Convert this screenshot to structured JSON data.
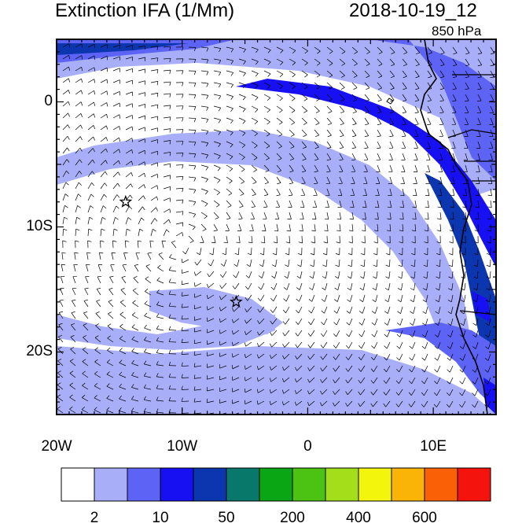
{
  "title": "Extinction IFA (1/Mm)",
  "timestamp": "2018-10-19_12",
  "level": "850 hPa",
  "map": {
    "lon_range": [
      -20,
      15
    ],
    "lat_range": [
      -25,
      5
    ],
    "lat_ticks": [
      {
        "value": 0,
        "label": "0"
      },
      {
        "value": -10,
        "label": "10S"
      },
      {
        "value": -20,
        "label": "20S"
      }
    ],
    "lon_ticks": [
      {
        "value": -20,
        "label": "20W"
      },
      {
        "value": -10,
        "label": "10W"
      },
      {
        "value": 0,
        "label": "0"
      },
      {
        "value": 10,
        "label": "10E"
      }
    ],
    "stars": [
      {
        "lon": -14.5,
        "lat": -8
      },
      {
        "lon": -5.7,
        "lat": -16
      }
    ]
  },
  "colorbar": {
    "colors": [
      "#ffffff",
      "#a8aff8",
      "#5d64f5",
      "#1610f2",
      "#0b36b0",
      "#07786a",
      "#0aa614",
      "#4cc213",
      "#a4dd1a",
      "#f4f50c",
      "#fab307",
      "#fa6005",
      "#f5130e"
    ],
    "labels": [
      {
        "after_box": 1,
        "text": "2"
      },
      {
        "after_box": 3,
        "text": "10"
      },
      {
        "after_box": 5,
        "text": "50"
      },
      {
        "after_box": 7,
        "text": "200"
      },
      {
        "after_box": 9,
        "text": "400"
      },
      {
        "after_box": 11,
        "text": "600"
      }
    ]
  }
}
